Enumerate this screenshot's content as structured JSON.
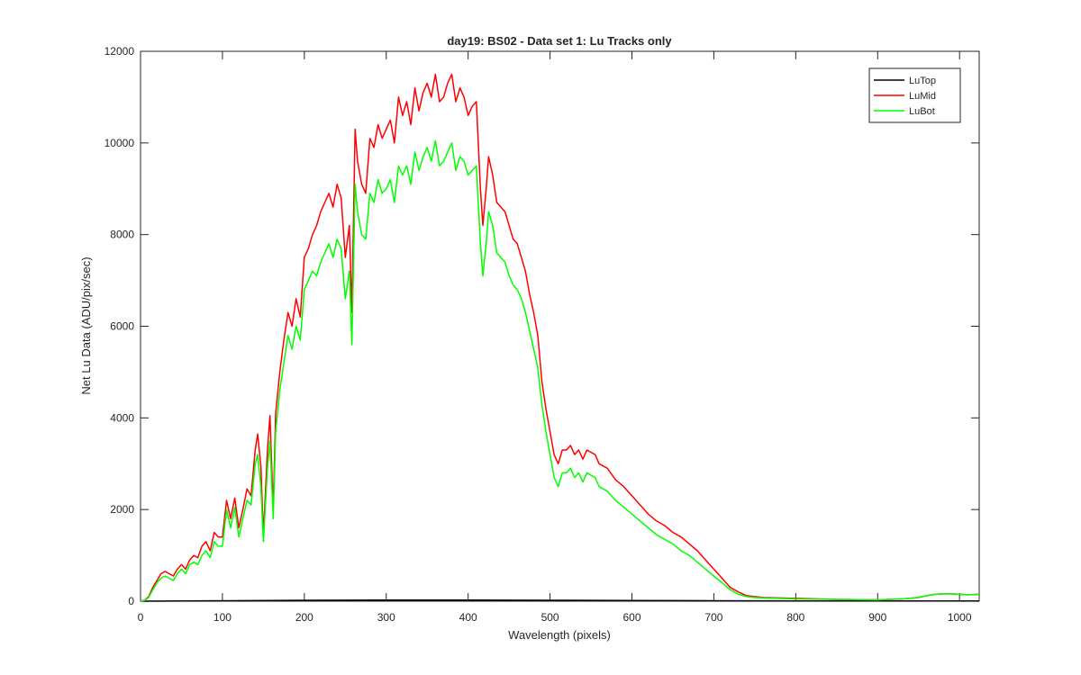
{
  "chart_data": {
    "type": "line",
    "title": "day19: BS02 - Data set 1: Lu Tracks only",
    "xlabel": "Wavelength (pixels)",
    "ylabel": "Net Lu Data (ADU/pix/sec)",
    "xlim": [
      0,
      1024
    ],
    "ylim": [
      0,
      12000
    ],
    "xticks": [
      0,
      100,
      200,
      300,
      400,
      500,
      600,
      700,
      800,
      900,
      1000
    ],
    "yticks": [
      0,
      2000,
      4000,
      6000,
      8000,
      10000,
      12000
    ],
    "grid": false,
    "legend_position": "top-right",
    "series": [
      {
        "name": "LuTop",
        "color": "#000000",
        "x": [
          0,
          100,
          200,
          300,
          400,
          500,
          600,
          700,
          800,
          900,
          1024
        ],
        "y": [
          0,
          10,
          20,
          25,
          25,
          20,
          15,
          10,
          5,
          5,
          5
        ]
      },
      {
        "name": "LuMid",
        "color": "#ff0000",
        "x": [
          0,
          5,
          10,
          15,
          20,
          25,
          30,
          35,
          40,
          45,
          50,
          55,
          60,
          65,
          70,
          75,
          80,
          85,
          90,
          95,
          100,
          105,
          110,
          115,
          120,
          125,
          130,
          135,
          140,
          143,
          147,
          150,
          155,
          158,
          162,
          165,
          170,
          175,
          180,
          185,
          190,
          195,
          200,
          205,
          210,
          215,
          220,
          225,
          230,
          235,
          240,
          245,
          250,
          255,
          258,
          262,
          265,
          270,
          275,
          280,
          285,
          290,
          295,
          300,
          305,
          310,
          315,
          320,
          325,
          330,
          335,
          340,
          345,
          350,
          355,
          360,
          365,
          370,
          375,
          380,
          385,
          390,
          395,
          400,
          405,
          410,
          415,
          418,
          422,
          425,
          430,
          435,
          440,
          445,
          450,
          455,
          460,
          465,
          470,
          475,
          480,
          485,
          490,
          495,
          500,
          505,
          510,
          515,
          520,
          525,
          530,
          535,
          540,
          545,
          550,
          555,
          560,
          570,
          580,
          590,
          600,
          610,
          620,
          630,
          640,
          650,
          660,
          670,
          680,
          690,
          700,
          710,
          720,
          730,
          740,
          750,
          760,
          780,
          800,
          850,
          900,
          930,
          950,
          960,
          970,
          980,
          990,
          1000,
          1010,
          1024
        ],
        "y": [
          0,
          20,
          100,
          300,
          450,
          600,
          650,
          600,
          550,
          700,
          800,
          700,
          900,
          1000,
          950,
          1200,
          1300,
          1100,
          1500,
          1400,
          1400,
          2200,
          1800,
          2250,
          1600,
          2000,
          2450,
          2300,
          3300,
          3650,
          2950,
          1450,
          3300,
          4050,
          2000,
          4100,
          5000,
          5700,
          6300,
          6000,
          6600,
          6200,
          7500,
          7700,
          8000,
          8200,
          8500,
          8700,
          8900,
          8600,
          9100,
          8800,
          7500,
          8200,
          6300,
          10300,
          9600,
          9100,
          8900,
          10100,
          9900,
          10400,
          10100,
          10300,
          10500,
          10000,
          11000,
          10600,
          10900,
          10400,
          11200,
          10700,
          11100,
          11300,
          11000,
          11500,
          10900,
          11000,
          11300,
          11500,
          10900,
          11200,
          11000,
          10600,
          10800,
          10900,
          9000,
          8200,
          9000,
          9700,
          9300,
          8700,
          8600,
          8500,
          8200,
          7900,
          7800,
          7500,
          7200,
          6700,
          6300,
          5800,
          4800,
          4200,
          3700,
          3200,
          3000,
          3300,
          3300,
          3400,
          3200,
          3300,
          3100,
          3300,
          3250,
          3200,
          3000,
          2900,
          2650,
          2500,
          2300,
          2100,
          1900,
          1750,
          1650,
          1500,
          1400,
          1250,
          1100,
          900,
          700,
          500,
          300,
          200,
          120,
          100,
          80,
          70,
          60,
          40,
          30,
          50,
          80,
          120,
          150,
          160,
          160,
          150,
          140,
          150
        ]
      },
      {
        "name": "LuBot",
        "color": "#00ff00",
        "x": [
          0,
          5,
          10,
          15,
          20,
          25,
          30,
          35,
          40,
          45,
          50,
          55,
          60,
          65,
          70,
          75,
          80,
          85,
          90,
          95,
          100,
          105,
          110,
          115,
          120,
          125,
          130,
          135,
          140,
          143,
          147,
          150,
          155,
          158,
          162,
          165,
          170,
          175,
          180,
          185,
          190,
          195,
          200,
          205,
          210,
          215,
          220,
          225,
          230,
          235,
          240,
          245,
          250,
          255,
          258,
          262,
          265,
          270,
          275,
          280,
          285,
          290,
          295,
          300,
          305,
          310,
          315,
          320,
          325,
          330,
          335,
          340,
          345,
          350,
          355,
          360,
          365,
          370,
          375,
          380,
          385,
          390,
          395,
          400,
          405,
          410,
          415,
          418,
          422,
          425,
          430,
          435,
          440,
          445,
          450,
          455,
          460,
          465,
          470,
          475,
          480,
          485,
          490,
          495,
          500,
          505,
          510,
          515,
          520,
          525,
          530,
          535,
          540,
          545,
          550,
          555,
          560,
          570,
          580,
          590,
          600,
          610,
          620,
          630,
          640,
          650,
          660,
          670,
          680,
          690,
          700,
          710,
          720,
          730,
          740,
          750,
          760,
          780,
          800,
          850,
          900,
          930,
          950,
          960,
          970,
          980,
          990,
          1000,
          1010,
          1024
        ],
        "y": [
          0,
          15,
          80,
          250,
          400,
          500,
          550,
          500,
          450,
          600,
          700,
          600,
          800,
          850,
          800,
          1000,
          1100,
          950,
          1300,
          1200,
          1200,
          2000,
          1600,
          2050,
          1400,
          1800,
          2200,
          2100,
          3000,
          3200,
          2500,
          1300,
          2900,
          3500,
          1800,
          3700,
          4600,
          5200,
          5800,
          5500,
          6000,
          5700,
          6800,
          7000,
          7200,
          7100,
          7400,
          7600,
          7800,
          7500,
          7900,
          7700,
          6600,
          7200,
          5600,
          9100,
          8500,
          8000,
          7900,
          8900,
          8700,
          9200,
          8900,
          9000,
          9200,
          8700,
          9500,
          9300,
          9500,
          9100,
          9800,
          9400,
          9700,
          9900,
          9600,
          10050,
          9500,
          9600,
          9800,
          10000,
          9400,
          9700,
          9600,
          9300,
          9400,
          9500,
          7800,
          7100,
          7800,
          8500,
          8200,
          7600,
          7500,
          7400,
          7100,
          6900,
          6800,
          6600,
          6300,
          5900,
          5500,
          5100,
          4300,
          3700,
          3200,
          2700,
          2500,
          2800,
          2800,
          2900,
          2700,
          2800,
          2600,
          2800,
          2750,
          2700,
          2500,
          2400,
          2200,
          2050,
          1900,
          1750,
          1600,
          1450,
          1350,
          1250,
          1100,
          1000,
          850,
          700,
          550,
          400,
          250,
          150,
          100,
          80,
          70,
          60,
          50,
          40,
          30,
          50,
          80,
          120,
          150,
          160,
          160,
          150,
          140,
          150
        ]
      }
    ]
  }
}
